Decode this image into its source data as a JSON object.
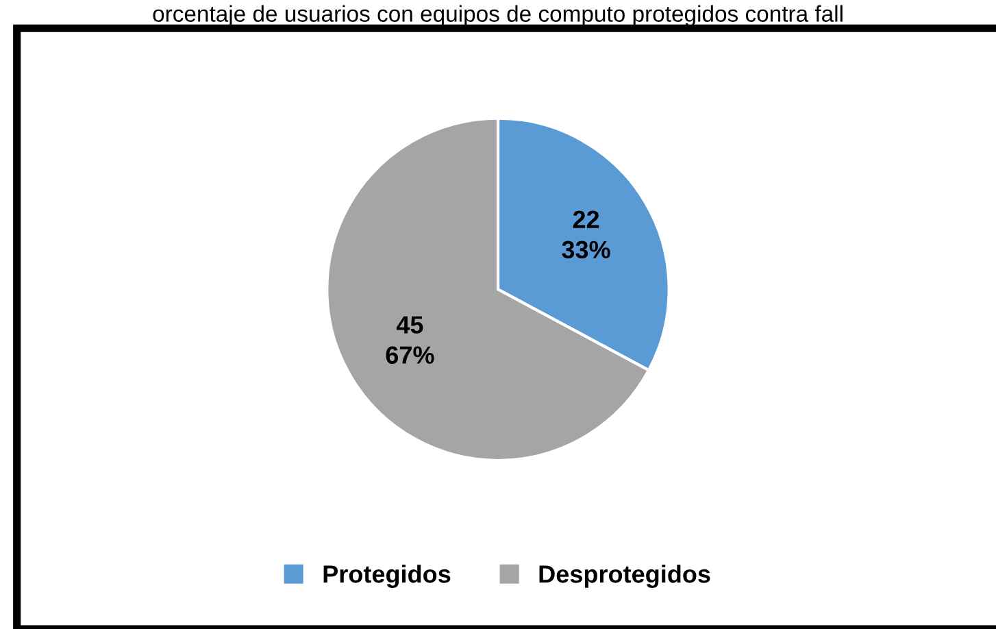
{
  "chart_data": {
    "type": "pie",
    "title": "orcentaje de usuarios con equipos de computo protegidos contra fall",
    "categories": [
      "Protegidos",
      "Desprotegidos"
    ],
    "values": [
      22,
      45
    ],
    "colors": [
      "#5b9bd5",
      "#a5a5a5"
    ],
    "value_labels": [
      "22\n33%",
      "45\n67%"
    ],
    "legend": "bottom"
  }
}
